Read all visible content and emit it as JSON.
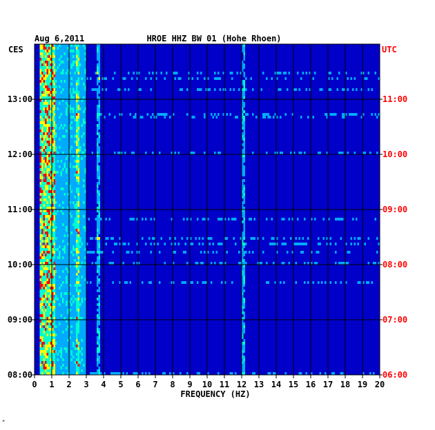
{
  "chart_data": {
    "type": "heatmap",
    "date": "Aug 6,2011",
    "station": "HROE HHZ BW 01 (Hohe Rhoen)",
    "left_zone": "CES",
    "right_zone": "UTC",
    "xlabel": "FREQUENCY (HZ)",
    "xlim": [
      0,
      20
    ],
    "x_ticks": [
      "0",
      "1",
      "2",
      "3",
      "4",
      "5",
      "6",
      "7",
      "8",
      "9",
      "10",
      "11",
      "12",
      "13",
      "14",
      "15",
      "16",
      "17",
      "18",
      "19",
      "20"
    ],
    "left_time_ticks": [
      "13:00",
      "12:00",
      "11:00",
      "10:00",
      "09:00",
      "08:00"
    ],
    "right_time_ticks": [
      "11:00",
      "10:00",
      "09:00",
      "08:00",
      "07:00",
      "06:00"
    ],
    "time_range_utc": [
      "06:00",
      "12:00"
    ],
    "grid": true,
    "colormap": [
      "#0000c8",
      "#00aaff",
      "#00ffcc",
      "#ffff00",
      "#ff0000"
    ],
    "right_label_color": "#ff0000",
    "features": [
      {
        "freq_range_hz": [
          0.3,
          1.2
        ],
        "level": "high",
        "note": "persistent strong energy"
      },
      {
        "freq_range_hz": [
          1.2,
          3.0
        ],
        "level": "medium"
      },
      {
        "freq_hz": 2.5,
        "level": "line"
      },
      {
        "freq_hz": 3.7,
        "level": "line"
      },
      {
        "freq_hz": 12.1,
        "level": "line"
      }
    ],
    "footer_mark": "*"
  }
}
